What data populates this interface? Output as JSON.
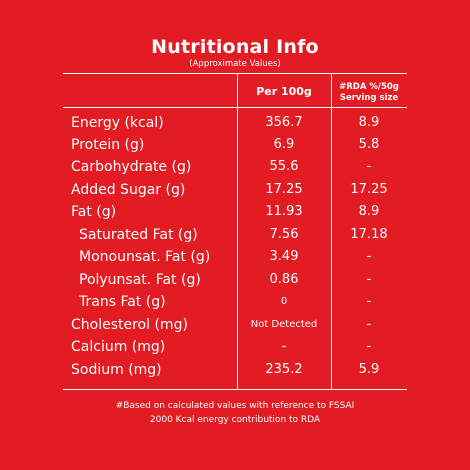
{
  "header": {
    "title": "Nutritional Info",
    "subtitle": "(Approximate Values)"
  },
  "columns": {
    "per100": "Per 100g",
    "rda_line1": "#RDA %/50g",
    "rda_line2": "Serving size"
  },
  "rows": [
    {
      "label": "Energy (kcal)",
      "per100": "356.7",
      "rda": "8.9"
    },
    {
      "label": "Protein (g)",
      "per100": "6.9",
      "rda": "5.8"
    },
    {
      "label": "Carbohydrate (g)",
      "per100": "55.6",
      "rda": "-"
    },
    {
      "label": "Added Sugar (g)",
      "per100": "17.25",
      "rda": "17.25"
    },
    {
      "label": "Fat (g)",
      "per100": "11.93",
      "rda": "8.9"
    },
    {
      "label": "Saturated Fat (g)",
      "per100": "7.56",
      "rda": "17.18"
    },
    {
      "label": "Monounsat. Fat (g)",
      "per100": "3.49",
      "rda": "-"
    },
    {
      "label": "Polyunsat. Fat (g)",
      "per100": "0.86",
      "rda": "-"
    },
    {
      "label": "Trans Fat (g)",
      "per100": "0",
      "rda": "-"
    },
    {
      "label": "Cholesterol (mg)",
      "per100": "Not Detected",
      "rda": "-"
    },
    {
      "label": "Calcium (mg)",
      "per100": "-",
      "rda": "-"
    },
    {
      "label": "Sodium (mg)",
      "per100": "235.2",
      "rda": "5.9"
    }
  ],
  "footer": {
    "line1": "#Based on calculated values with reference to FSSAI",
    "line2": "2000 Kcal energy contribution to RDA"
  },
  "colors": {
    "background": "#E31B23",
    "text": "#FFFFFF"
  }
}
